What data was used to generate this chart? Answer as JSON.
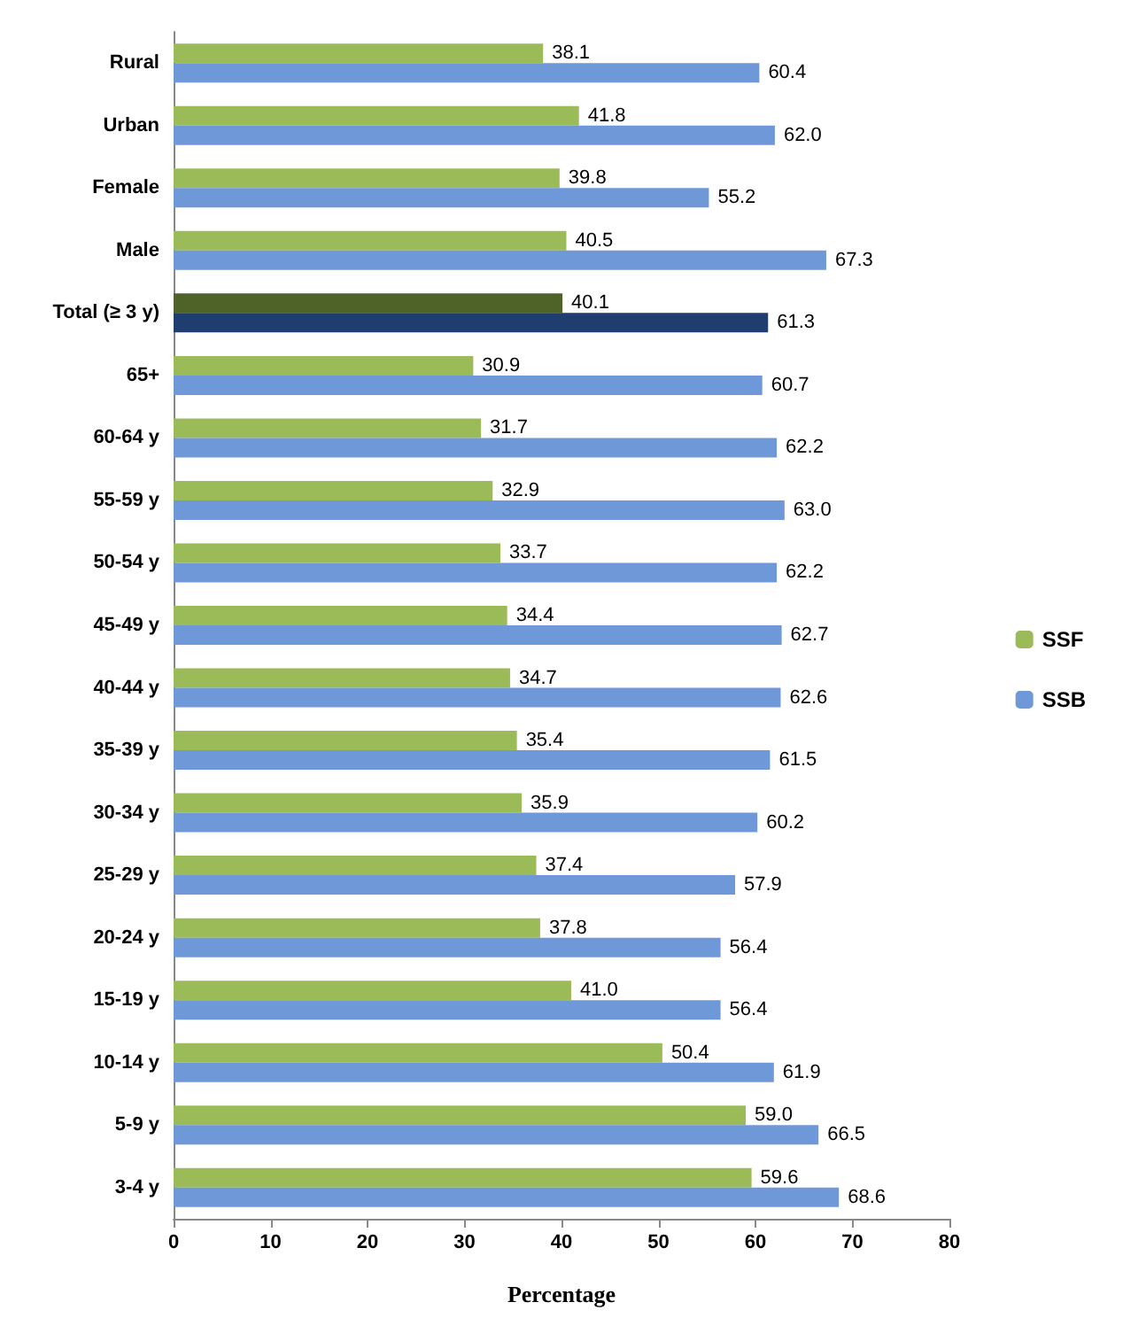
{
  "chart_data": {
    "type": "bar",
    "orientation": "horizontal",
    "xlabel": "Percentage",
    "categories": [
      "Rural",
      "Urban",
      "Female",
      "Male",
      "Total (≥ 3 y)",
      "65+",
      "60-64 y",
      "55-59 y",
      "50-54 y",
      "45-49 y",
      "40-44 y",
      "35-39 y",
      "30-34 y",
      "25-29 y",
      "20-24 y",
      "15-19 y",
      "10-14 y",
      "5-9 y",
      "3-4 y"
    ],
    "series": [
      {
        "name": "SSF",
        "color": "#9bbb59",
        "colors": [
          "#9bbb59",
          "#9bbb59",
          "#9bbb59",
          "#9bbb59",
          "#4f6228",
          "#9bbb59",
          "#9bbb59",
          "#9bbb59",
          "#9bbb59",
          "#9bbb59",
          "#9bbb59",
          "#9bbb59",
          "#9bbb59",
          "#9bbb59",
          "#9bbb59",
          "#9bbb59",
          "#9bbb59",
          "#9bbb59",
          "#9bbb59"
        ],
        "values": [
          38.1,
          41.8,
          39.8,
          40.5,
          40.1,
          30.9,
          31.7,
          32.9,
          33.7,
          34.4,
          34.7,
          35.4,
          35.9,
          37.4,
          37.8,
          41.0,
          50.4,
          59.0,
          59.6
        ],
        "value_labels": [
          "38.1",
          "41.8",
          "39.8",
          "40.5",
          "40.1",
          "30.9",
          "31.7",
          "32.9",
          "33.7",
          "34.4",
          "34.7",
          "35.4",
          "35.9",
          "37.4",
          "37.8",
          "41.0",
          "50.4",
          "59.0",
          "59.6"
        ]
      },
      {
        "name": "SSB",
        "color": "#6f98d8",
        "colors": [
          "#6f98d8",
          "#6f98d8",
          "#6f98d8",
          "#6f98d8",
          "#1f3d6e",
          "#6f98d8",
          "#6f98d8",
          "#6f98d8",
          "#6f98d8",
          "#6f98d8",
          "#6f98d8",
          "#6f98d8",
          "#6f98d8",
          "#6f98d8",
          "#6f98d8",
          "#6f98d8",
          "#6f98d8",
          "#6f98d8",
          "#6f98d8"
        ],
        "values": [
          60.4,
          62.0,
          55.2,
          67.3,
          61.3,
          60.7,
          62.2,
          63.0,
          62.2,
          62.7,
          62.6,
          61.5,
          60.2,
          57.9,
          56.4,
          56.4,
          61.9,
          66.5,
          68.6
        ],
        "value_labels": [
          "60.4",
          "62.0",
          "55.2",
          "67.3",
          "61.3",
          "60.7",
          "62.2",
          "63.0",
          "62.2",
          "62.7",
          "62.6",
          "61.5",
          "60.2",
          "57.9",
          "56.4",
          "56.4",
          "61.9",
          "66.5",
          "68.6"
        ]
      }
    ],
    "xlim": [
      0,
      80
    ],
    "xticks": [
      0,
      10,
      20,
      30,
      40,
      50,
      60,
      70,
      80
    ],
    "grid": false,
    "legend": "right"
  }
}
